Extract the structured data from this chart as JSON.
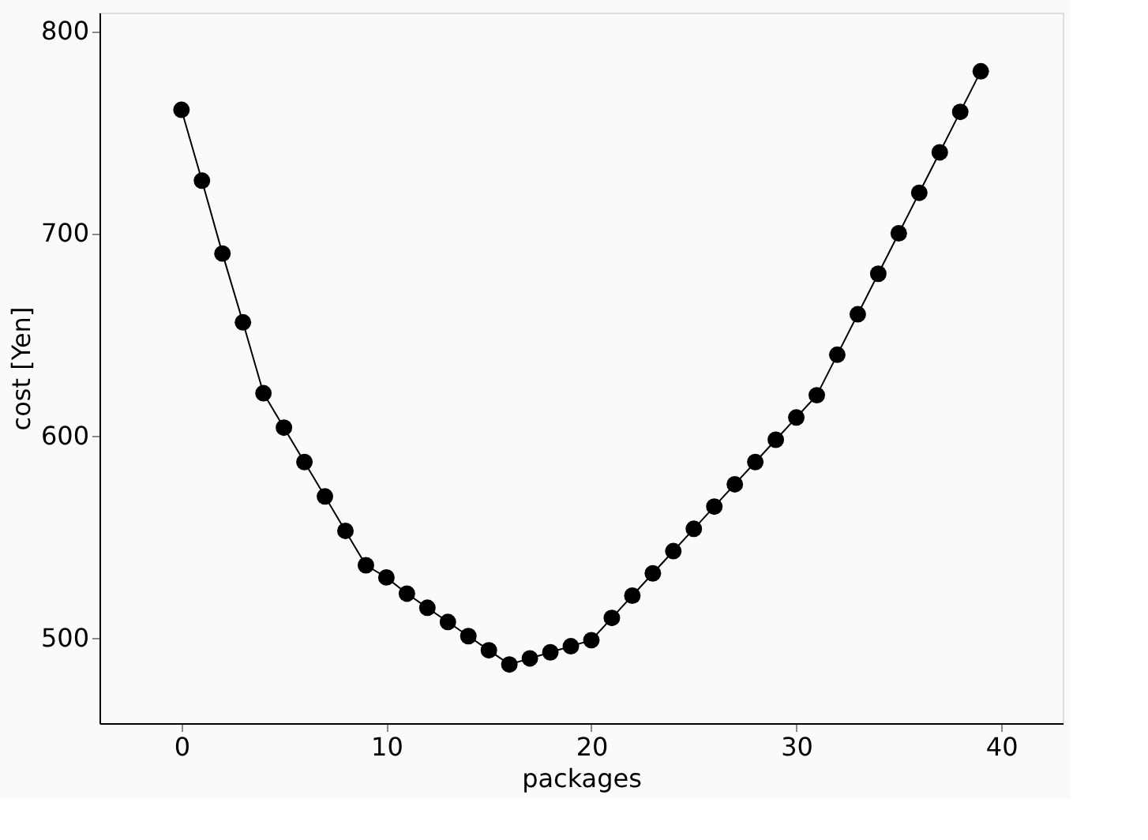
{
  "chart_data": {
    "type": "line",
    "xlabel": "packages",
    "ylabel": "cost  [Yen]",
    "x": [
      0,
      1,
      2,
      3,
      4,
      5,
      6,
      7,
      8,
      9,
      10,
      11,
      12,
      13,
      14,
      15,
      16,
      17,
      18,
      19,
      20,
      21,
      22,
      23,
      24,
      25,
      26,
      27,
      28,
      29,
      30,
      31,
      32,
      33,
      34,
      35,
      36,
      37,
      38,
      39
    ],
    "series": [
      {
        "color": "#000000",
        "values": [
          761,
          726,
          690,
          656,
          621,
          604,
          587,
          570,
          553,
          536,
          530,
          522,
          515,
          508,
          501,
          494,
          487,
          490,
          493,
          496,
          499,
          510,
          521,
          532,
          543,
          554,
          565,
          576,
          587,
          598,
          609,
          620,
          640,
          660,
          680,
          700,
          720,
          740,
          760,
          780
        ]
      }
    ],
    "xlim": [
      -4,
      43
    ],
    "ylim": [
      458,
      809
    ],
    "xticks": [
      0,
      10,
      20,
      30,
      40
    ],
    "yticks": [
      500,
      600,
      700,
      800
    ],
    "marker": "circle",
    "line_style": "solid",
    "grid": false
  }
}
